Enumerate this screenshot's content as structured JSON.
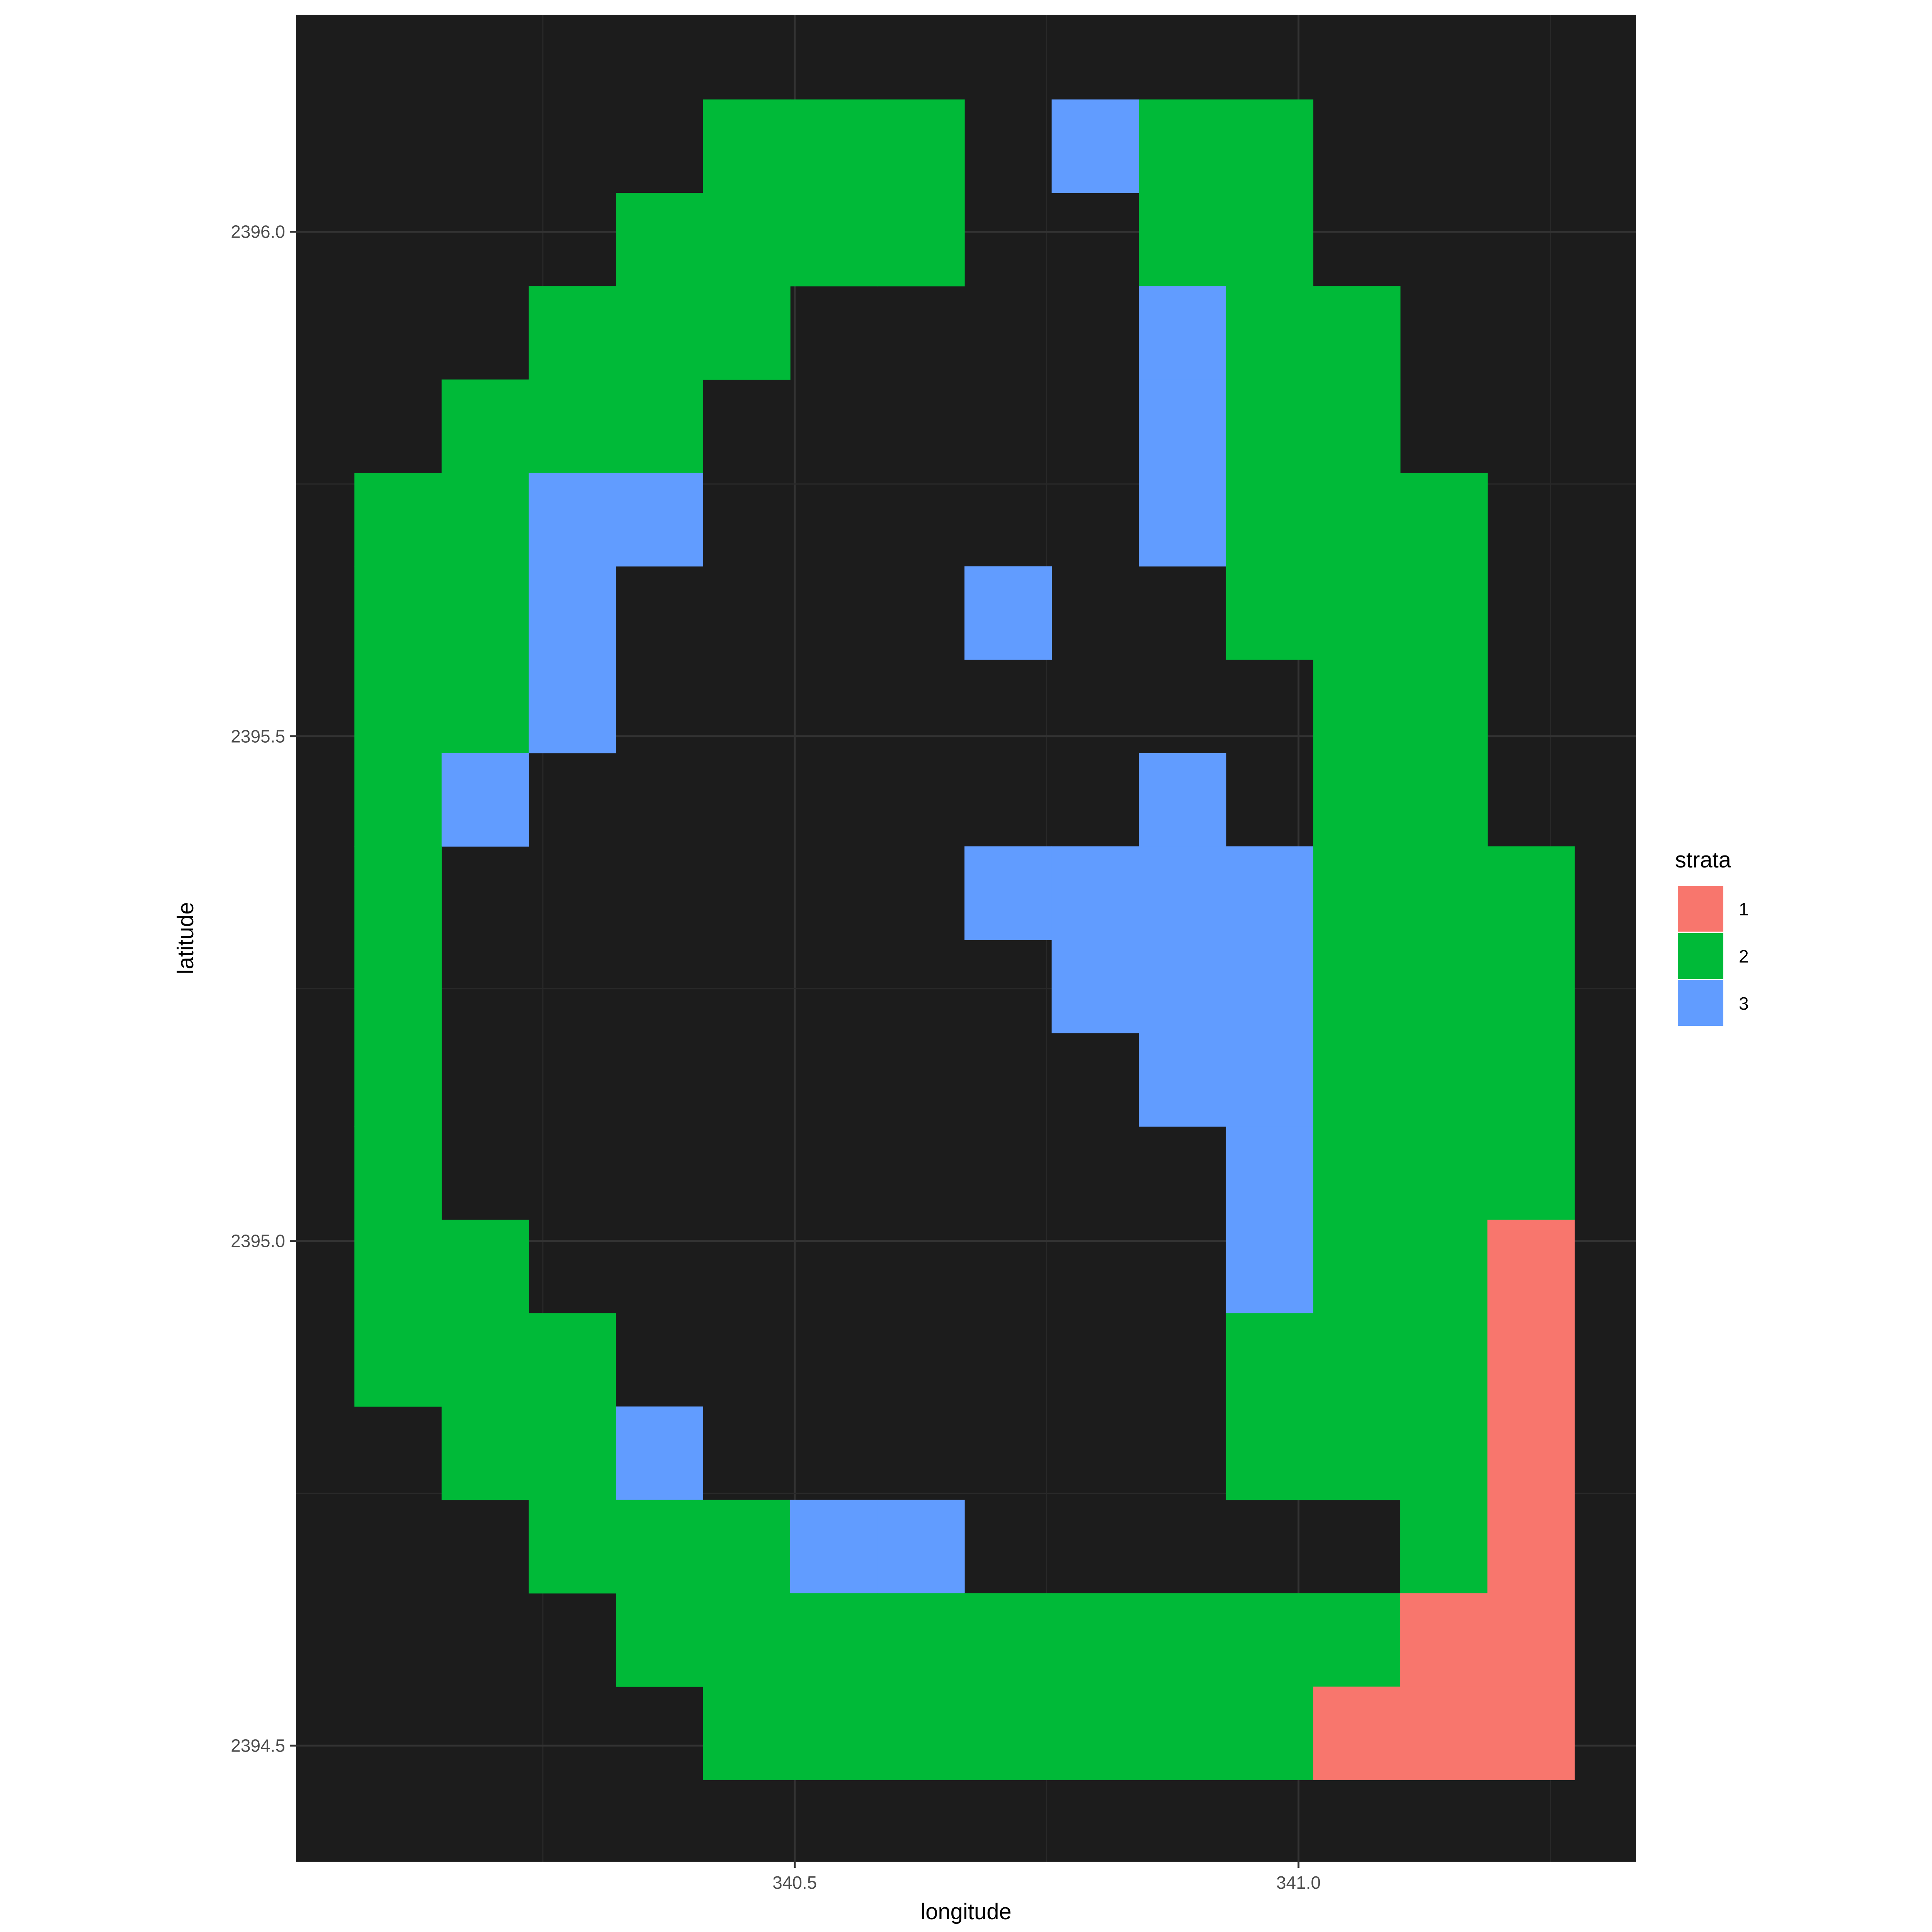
{
  "chart_data": {
    "type": "heatmap",
    "xlabel": "longitude",
    "ylabel": "latitude",
    "x_ticks": [
      "340.5",
      "341.0"
    ],
    "y_ticks": [
      "2396.0",
      "2395.5",
      "2395.0",
      "2394.5"
    ],
    "x_tick_values": [
      340.5,
      341.0
    ],
    "y_tick_values": [
      2396.0,
      2395.5,
      2395.0,
      2394.5
    ],
    "xlim": [
      340.005,
      341.335
    ],
    "ylim": [
      2394.385,
      2396.215
    ],
    "cell_width": 0.0865,
    "cell_height": 0.0925,
    "x_start": 340.063,
    "y_top": 2396.131,
    "n_cols": 14,
    "n_rows": 18,
    "grid": true,
    "background": "#1c1c1c",
    "legend": {
      "title": "strata",
      "position": "right",
      "entries": [
        {
          "label": "1",
          "color": "#F8766D"
        },
        {
          "label": "2",
          "color": "#00BA38"
        },
        {
          "label": "3",
          "color": "#619CFF"
        }
      ]
    },
    "grid_values": [
      [
        0,
        0,
        0,
        0,
        2,
        2,
        2,
        0,
        3,
        2,
        2,
        0,
        0,
        0
      ],
      [
        0,
        0,
        0,
        2,
        2,
        2,
        2,
        0,
        0,
        2,
        2,
        0,
        0,
        0
      ],
      [
        0,
        0,
        2,
        2,
        2,
        0,
        0,
        0,
        0,
        3,
        2,
        2,
        0,
        0
      ],
      [
        0,
        2,
        2,
        2,
        0,
        0,
        0,
        0,
        0,
        3,
        2,
        2,
        0,
        0
      ],
      [
        2,
        2,
        3,
        3,
        0,
        0,
        0,
        0,
        0,
        3,
        2,
        2,
        2,
        0
      ],
      [
        2,
        2,
        3,
        0,
        0,
        0,
        0,
        3,
        0,
        0,
        2,
        2,
        2,
        0
      ],
      [
        2,
        2,
        3,
        0,
        0,
        0,
        0,
        0,
        0,
        0,
        0,
        2,
        2,
        0
      ],
      [
        2,
        3,
        0,
        0,
        0,
        0,
        0,
        0,
        0,
        3,
        0,
        2,
        2,
        0
      ],
      [
        2,
        0,
        0,
        0,
        0,
        0,
        0,
        3,
        3,
        3,
        3,
        2,
        2,
        2
      ],
      [
        2,
        0,
        0,
        0,
        0,
        0,
        0,
        0,
        3,
        3,
        3,
        2,
        2,
        2
      ],
      [
        2,
        0,
        0,
        0,
        0,
        0,
        0,
        0,
        0,
        3,
        3,
        2,
        2,
        2
      ],
      [
        2,
        0,
        0,
        0,
        0,
        0,
        0,
        0,
        0,
        0,
        3,
        2,
        2,
        2
      ],
      [
        2,
        2,
        0,
        0,
        0,
        0,
        0,
        0,
        0,
        0,
        3,
        2,
        2,
        1
      ],
      [
        2,
        2,
        2,
        0,
        0,
        0,
        0,
        0,
        0,
        0,
        2,
        2,
        2,
        1
      ],
      [
        0,
        2,
        2,
        3,
        0,
        0,
        0,
        0,
        0,
        0,
        2,
        2,
        2,
        1
      ],
      [
        0,
        0,
        2,
        2,
        2,
        3,
        3,
        0,
        0,
        0,
        0,
        0,
        2,
        1
      ],
      [
        0,
        0,
        0,
        2,
        2,
        2,
        2,
        2,
        2,
        2,
        2,
        2,
        1,
        1
      ],
      [
        0,
        0,
        0,
        0,
        2,
        2,
        2,
        2,
        2,
        2,
        2,
        1,
        1,
        1
      ]
    ]
  }
}
